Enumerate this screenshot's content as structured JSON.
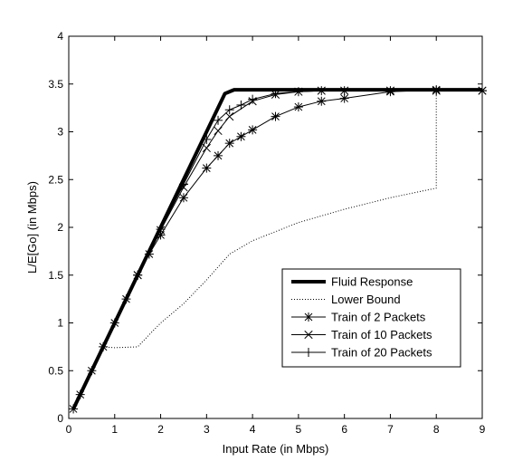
{
  "chart_data": {
    "type": "line",
    "title": "",
    "xlabel": "Input Rate (in Mbps)",
    "ylabel": "L/E[Go] (in Mbps)",
    "xlim": [
      0,
      9
    ],
    "ylim": [
      0,
      4
    ],
    "xticks": [
      0,
      1,
      2,
      3,
      4,
      5,
      6,
      7,
      8,
      9
    ],
    "yticks": [
      0,
      0.5,
      1,
      1.5,
      2,
      2.5,
      3,
      3.5,
      4
    ],
    "xtick_labels": [
      "0",
      "1",
      "2",
      "3",
      "4",
      "5",
      "6",
      "7",
      "8",
      "9"
    ],
    "ytick_labels": [
      "0",
      "0.5",
      "1",
      "1.5",
      "2",
      "2.5",
      "3",
      "3.5",
      "4"
    ],
    "grid": false,
    "legend_position": "lower-right",
    "series": [
      {
        "name": "Fluid Response",
        "style": "thick",
        "marker": "none",
        "x": [
          0.1,
          3.4,
          3.6,
          9.0
        ],
        "y": [
          0.1,
          3.4,
          3.44,
          3.44
        ]
      },
      {
        "name": "Lower Bound",
        "style": "dotted",
        "marker": "none",
        "x": [
          0.75,
          1.0,
          1.5,
          1.7,
          2.0,
          2.5,
          3.0,
          3.5,
          4.0,
          5.0,
          6.0,
          7.0,
          8.0,
          8.0,
          9.0
        ],
        "y": [
          0.75,
          0.74,
          0.75,
          0.85,
          1.0,
          1.2,
          1.45,
          1.72,
          1.86,
          2.05,
          2.19,
          2.31,
          2.41,
          3.44,
          3.44
        ]
      },
      {
        "name": "Train of 2 Packets",
        "style": "solid",
        "marker": "asterisk",
        "x": [
          0.1,
          0.25,
          0.5,
          0.75,
          1.0,
          1.25,
          1.5,
          1.75,
          2.0,
          2.5,
          3.0,
          3.25,
          3.5,
          3.75,
          4.0,
          4.5,
          5.0,
          5.5,
          6.0,
          7.0,
          8.0,
          9.0
        ],
        "y": [
          0.1,
          0.25,
          0.5,
          0.75,
          1.0,
          1.25,
          1.5,
          1.72,
          1.92,
          2.31,
          2.62,
          2.75,
          2.88,
          2.95,
          3.02,
          3.16,
          3.26,
          3.32,
          3.35,
          3.42,
          3.44,
          3.43
        ]
      },
      {
        "name": "Train of 10 Packets",
        "style": "solid",
        "marker": "x",
        "x": [
          1.5,
          2.0,
          2.5,
          3.0,
          3.25,
          3.5,
          4.0,
          4.5,
          5.0,
          5.5,
          6.0,
          7.0,
          8.0,
          9.0
        ],
        "y": [
          1.5,
          1.97,
          2.42,
          2.83,
          3.01,
          3.16,
          3.32,
          3.39,
          3.42,
          3.43,
          3.43,
          3.43,
          3.43,
          3.43
        ]
      },
      {
        "name": "Train of 20 Packets",
        "style": "solid",
        "marker": "plus",
        "x": [
          1.5,
          2.0,
          2.5,
          3.0,
          3.25,
          3.5,
          3.75,
          4.0,
          4.5,
          5.0,
          5.5,
          6.0,
          7.0,
          8.0,
          9.0
        ],
        "y": [
          1.5,
          1.98,
          2.45,
          2.92,
          3.12,
          3.23,
          3.28,
          3.34,
          3.4,
          3.42,
          3.43,
          3.43,
          3.43,
          3.43,
          3.43
        ]
      }
    ]
  }
}
